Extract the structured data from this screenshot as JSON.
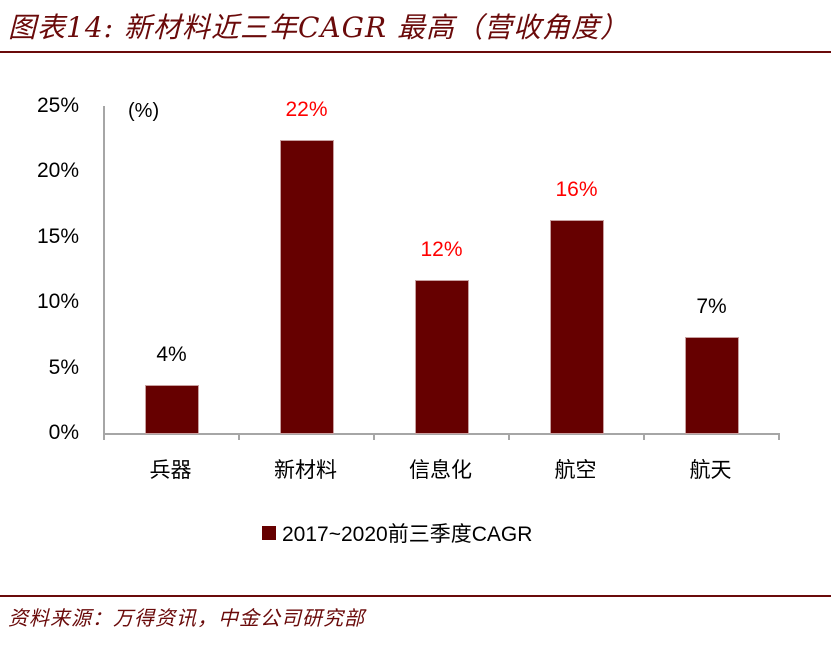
{
  "header": {
    "title": "图表14:  新材料近三年CAGR 最高（营收角度）"
  },
  "footer": {
    "source": "资料来源：万得资讯，中金公司研究部"
  },
  "colors": {
    "bar": "#660000",
    "highlight_label": "#ff0000",
    "normal_label": "#000000",
    "rule": "#6a0a0a",
    "axis": "#a6a6a6"
  },
  "chart_data": {
    "type": "bar",
    "title": "新材料近三年CAGR 最高（营收角度）",
    "unit_label": "(%)",
    "xlabel": "",
    "ylabel": "(%)",
    "ylim": [
      0,
      25
    ],
    "yticks": [
      "0%",
      "5%",
      "10%",
      "15%",
      "20%",
      "25%"
    ],
    "categories": [
      "兵器",
      "新材料",
      "信息化",
      "航空",
      "航天"
    ],
    "series": [
      {
        "name": "2017~2020前三季度CAGR",
        "values": [
          3.7,
          22.4,
          11.7,
          16.3,
          7.4
        ]
      }
    ],
    "data_labels": [
      "4%",
      "22%",
      "12%",
      "16%",
      "7%"
    ],
    "label_highlight": [
      false,
      true,
      true,
      true,
      false
    ],
    "legend": {
      "position": "bottom",
      "entries": [
        "2017~2020前三季度CAGR"
      ]
    },
    "grid": false
  }
}
